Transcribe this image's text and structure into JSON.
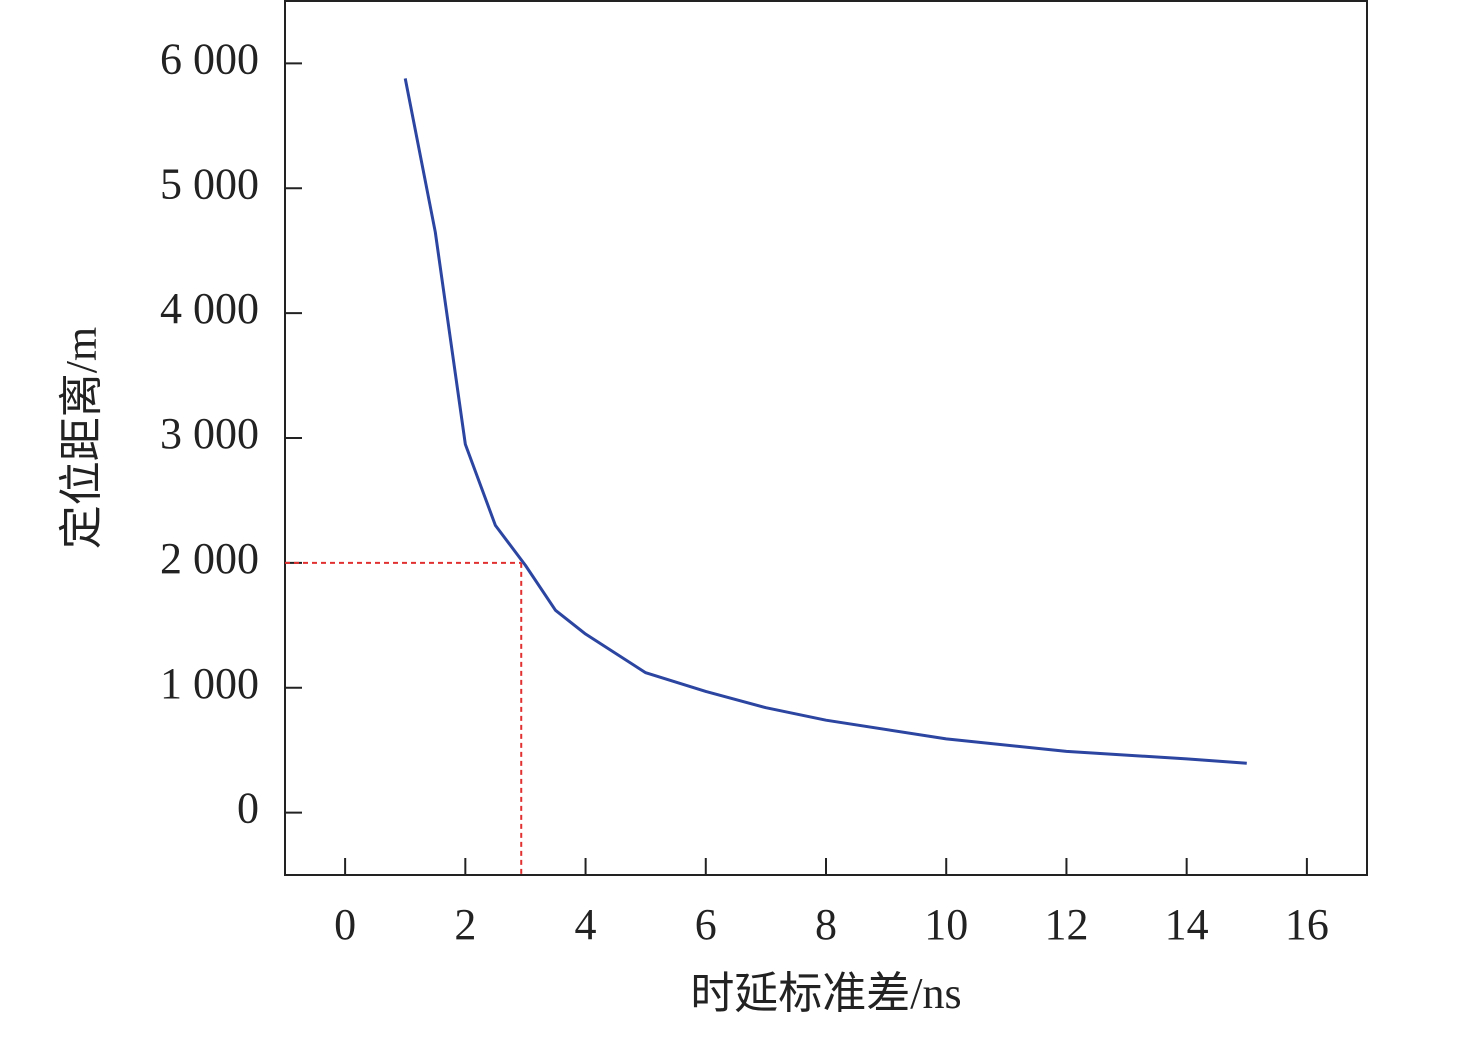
{
  "chart_data": {
    "type": "line",
    "x_label": "时延标准差/ns",
    "y_label": "定位距离/m",
    "x": [
      1,
      1.5,
      2,
      2.5,
      3,
      3.5,
      4,
      5,
      6,
      7,
      8,
      10,
      12,
      14,
      15
    ],
    "series": [
      {
        "color": "#2b45a0",
        "values": [
          5880,
          4650,
          2950,
          2300,
          1980,
          1620,
          1430,
          1120,
          970,
          840,
          740,
          590,
          490,
          430,
          395
        ]
      }
    ],
    "reference": {
      "x": 2.93,
      "y": 2000,
      "color": "#e03030"
    },
    "xlim": [
      -1,
      17
    ],
    "ylim": [
      -500,
      6500
    ],
    "xticks": [
      0,
      2,
      4,
      6,
      8,
      10,
      12,
      14,
      16
    ],
    "yticks": [
      0,
      {
        "value": 1000,
        "label": "1 000"
      },
      {
        "value": 2000,
        "label": "2 000"
      },
      {
        "value": 3000,
        "label": "3 000"
      },
      {
        "value": 4000,
        "label": "4 000"
      },
      {
        "value": 5000,
        "label": "5 000"
      },
      {
        "value": 6000,
        "label": "6 000"
      }
    ]
  }
}
